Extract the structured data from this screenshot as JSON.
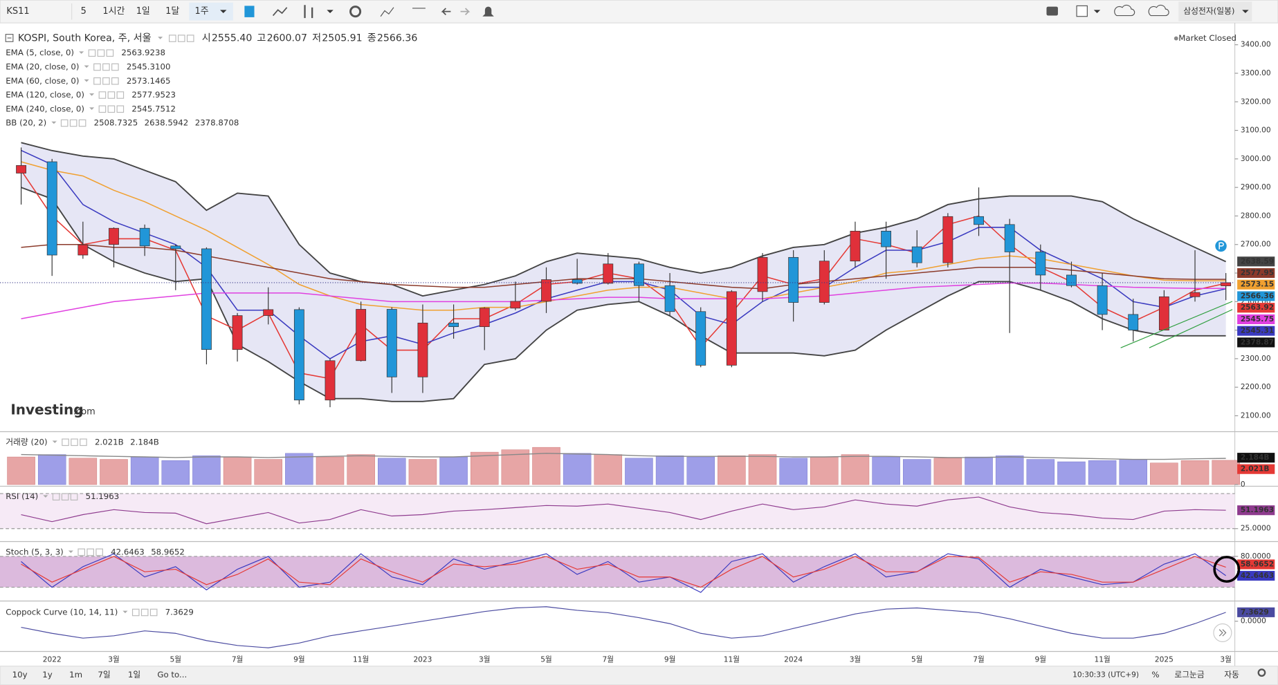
{
  "toolbar": {
    "symbol": "KS11",
    "intervals": [
      "5",
      "1시간",
      "1일",
      "1달",
      "1주"
    ],
    "active_interval": 4,
    "watchlist": "삼성전자(일봉)"
  },
  "status": "Market Closed",
  "watermark": [
    "Investing",
    ".com"
  ],
  "chart_data": [
    {
      "type": "candlestick",
      "title": "KOSPI, South Korea, 주, 서울",
      "ohlc_header": [
        {
          "label": "시",
          "value": "2555.40"
        },
        {
          "label": "고",
          "value": "2600.07"
        },
        {
          "label": "저",
          "value": "2505.91"
        },
        {
          "label": "종",
          "value": "2566.36"
        }
      ],
      "categories": [
        null,
        "2022",
        null,
        "3월",
        null,
        "5월",
        null,
        "7월",
        null,
        "9월",
        null,
        "11월",
        null,
        "2023",
        null,
        "3월",
        null,
        "5월",
        null,
        "7월",
        null,
        "9월",
        null,
        "11월",
        null,
        "2024",
        null,
        "3월",
        null,
        "5월",
        null,
        "7월",
        null,
        "9월",
        null,
        "11월",
        null,
        "2025",
        null,
        "3월"
      ],
      "open": [
        2950,
        2990,
        2663,
        2700,
        2757,
        2695,
        2685,
        2332,
        2451,
        2472,
        2155,
        2293,
        2473,
        2236,
        2425,
        2412,
        2477,
        2501,
        2577,
        2564,
        2632,
        2556,
        2465,
        2277,
        2535,
        2655,
        2497,
        2642,
        2747,
        2692,
        2636,
        2798,
        2770,
        2674,
        2593,
        2556,
        2455,
        2400,
        2517,
        2555
      ],
      "high": [
        3040,
        3000,
        2780,
        2760,
        2770,
        2700,
        2690,
        2460,
        2550,
        2480,
        2300,
        2500,
        2480,
        2490,
        2490,
        2480,
        2570,
        2620,
        2650,
        2670,
        2640,
        2600,
        2480,
        2540,
        2670,
        2680,
        2680,
        2780,
        2780,
        2750,
        2810,
        2900,
        2790,
        2700,
        2640,
        2600,
        2510,
        2540,
        2680,
        2600
      ],
      "low": [
        2840,
        2590,
        2650,
        2620,
        2660,
        2540,
        2280,
        2290,
        2420,
        2140,
        2130,
        2290,
        2180,
        2180,
        2370,
        2330,
        2470,
        2460,
        2560,
        2560,
        2500,
        2450,
        2270,
        2270,
        2500,
        2430,
        2490,
        2620,
        2580,
        2620,
        2620,
        2730,
        2390,
        2540,
        2550,
        2400,
        2360,
        2400,
        2500,
        2505
      ],
      "close": [
        2977,
        2663,
        2699,
        2757,
        2695,
        2685,
        2332,
        2451,
        2472,
        2155,
        2293,
        2473,
        2236,
        2425,
        2412,
        2477,
        2501,
        2577,
        2564,
        2632,
        2556,
        2465,
        2277,
        2535,
        2655,
        2497,
        2642,
        2747,
        2692,
        2636,
        2798,
        2770,
        2674,
        2593,
        2556,
        2455,
        2400,
        2517,
        2532,
        2566.36
      ],
      "up_color": "#e0303a",
      "down_color": "#2196d8",
      "last_price": 2566.36,
      "last_color": "#2196d8",
      "ylim": [
        2050,
        3465
      ],
      "grid": false,
      "yticks": [
        {
          "value": 2100,
          "label": "2100.00"
        },
        {
          "value": 2200,
          "label": "2200.00"
        },
        {
          "value": 2300,
          "label": "2300.00"
        },
        {
          "value": 2400,
          "label": "2400.00"
        },
        {
          "value": 2500,
          "label": "2500.00"
        },
        {
          "value": 2600,
          "label": "2600.00"
        },
        {
          "value": 2700,
          "label": "2700.00"
        },
        {
          "value": 2800,
          "label": "2800.00"
        },
        {
          "value": 2900,
          "label": "2900.00"
        },
        {
          "value": 3000,
          "label": "3000.00"
        },
        {
          "value": 3100,
          "label": "3100.00"
        },
        {
          "value": 3200,
          "label": "3200.00"
        },
        {
          "value": 3300,
          "label": "3300.00"
        },
        {
          "value": 3400,
          "label": "3400.00"
        }
      ],
      "series": [
        {
          "name": "EMA (5, close, 0)",
          "color": "#e53935",
          "legend_value": "2563.9238",
          "tag": "2563.92",
          "values": [
            2960,
            2800,
            2700,
            2720,
            2720,
            2680,
            2450,
            2400,
            2460,
            2250,
            2230,
            2420,
            2330,
            2330,
            2440,
            2440,
            2490,
            2560,
            2570,
            2600,
            2580,
            2500,
            2340,
            2460,
            2590,
            2560,
            2580,
            2720,
            2700,
            2670,
            2770,
            2800,
            2700,
            2620,
            2570,
            2480,
            2430,
            2480,
            2540,
            2564
          ]
        },
        {
          "name": "EMA (20, close, 0)",
          "color": "#3a3ac0",
          "legend_value": "2545.3100",
          "tag": "2545.31",
          "values": [
            3030,
            2980,
            2840,
            2780,
            2740,
            2700,
            2620,
            2470,
            2470,
            2380,
            2300,
            2360,
            2380,
            2350,
            2390,
            2420,
            2460,
            2510,
            2540,
            2570,
            2570,
            2540,
            2450,
            2420,
            2500,
            2550,
            2550,
            2620,
            2680,
            2680,
            2710,
            2760,
            2760,
            2680,
            2630,
            2580,
            2500,
            2480,
            2520,
            2545
          ]
        },
        {
          "name": "EMA (60, close, 0)",
          "color": "#f0a030",
          "legend_value": "2573.1465",
          "tag": "2573.15",
          "values": [
            2990,
            2960,
            2940,
            2890,
            2850,
            2800,
            2750,
            2690,
            2630,
            2560,
            2520,
            2490,
            2480,
            2470,
            2470,
            2480,
            2480,
            2500,
            2520,
            2540,
            2550,
            2550,
            2530,
            2510,
            2510,
            2530,
            2550,
            2570,
            2600,
            2610,
            2630,
            2650,
            2660,
            2650,
            2630,
            2610,
            2590,
            2575,
            2573,
            2573
          ]
        },
        {
          "name": "EMA (120, close, 0)",
          "color": "#8b3a2a",
          "legend_value": "2577.9523",
          "tag": "2577.95",
          "values": [
            2690,
            2700,
            2700,
            2690,
            2690,
            2680,
            2660,
            2640,
            2620,
            2600,
            2580,
            2570,
            2560,
            2555,
            2550,
            2550,
            2560,
            2570,
            2580,
            2580,
            2580,
            2570,
            2560,
            2550,
            2545,
            2560,
            2570,
            2580,
            2590,
            2600,
            2610,
            2620,
            2620,
            2620,
            2610,
            2600,
            2590,
            2580,
            2578,
            2578
          ]
        },
        {
          "name": "EMA (240, close, 0)",
          "color": "#e040e0",
          "legend_value": "2545.7512",
          "tag": "2545.75",
          "values": [
            2440,
            2460,
            2480,
            2500,
            2510,
            2520,
            2530,
            2530,
            2530,
            2530,
            2520,
            2510,
            2500,
            2500,
            2500,
            2500,
            2500,
            2505,
            2510,
            2515,
            2515,
            2510,
            2510,
            2510,
            2510,
            2515,
            2520,
            2530,
            2540,
            2550,
            2555,
            2560,
            2565,
            2565,
            2560,
            2555,
            2550,
            2548,
            2546,
            2546
          ]
        }
      ],
      "bands": {
        "name": "BB (20, 2)",
        "color": "#444444",
        "fill": "#e6e6f5",
        "legend_values": [
          "2508.7325",
          "2638.5942",
          "2378.8708"
        ],
        "legend_colors": [
          "#e53935",
          "#222222",
          "#222222"
        ],
        "upper_tag": "2638.59",
        "lower_tag": "2378.87",
        "upper": [
          3057,
          3029,
          3010,
          3000,
          2960,
          2920,
          2820,
          2880,
          2870,
          2700,
          2600,
          2570,
          2560,
          2520,
          2540,
          2560,
          2590,
          2640,
          2670,
          2660,
          2650,
          2620,
          2600,
          2620,
          2660,
          2690,
          2700,
          2740,
          2760,
          2790,
          2840,
          2860,
          2870,
          2870,
          2870,
          2850,
          2790,
          2740,
          2690,
          2640
        ],
        "lower": [
          2900,
          2860,
          2700,
          2640,
          2600,
          2570,
          2580,
          2350,
          2290,
          2220,
          2160,
          2160,
          2150,
          2150,
          2160,
          2280,
          2300,
          2400,
          2470,
          2490,
          2500,
          2450,
          2380,
          2320,
          2320,
          2320,
          2310,
          2330,
          2400,
          2460,
          2520,
          2570,
          2570,
          2540,
          2500,
          2440,
          2400,
          2380,
          2380,
          2380
        ]
      }
    },
    {
      "type": "bar",
      "title": "거래량 (20)",
      "legend_values": [
        "2.021B",
        "2.184B"
      ],
      "legend_colors": [
        "#e53935",
        "#222222"
      ],
      "tags": [
        "2.184B",
        "2.021B"
      ],
      "tag_colors": [
        "#111111",
        "#e53935"
      ],
      "up_color": "#e7a5a5",
      "down_color": "#9e9ee8",
      "ylim": [
        0,
        4.2
      ],
      "yticks": [
        0
      ],
      "values": [
        2.3,
        2.5,
        2.2,
        2.1,
        2.3,
        2.0,
        2.4,
        2.3,
        2.1,
        2.6,
        2.3,
        2.5,
        2.2,
        2.1,
        2.3,
        2.7,
        2.9,
        3.1,
        2.6,
        2.5,
        2.2,
        2.4,
        2.3,
        2.4,
        2.5,
        2.2,
        2.3,
        2.5,
        2.3,
        2.1,
        2.2,
        2.3,
        2.4,
        2.1,
        1.9,
        2.0,
        2.1,
        1.8,
        2.0,
        2.021
      ],
      "ma": {
        "color": "#888888",
        "values": [
          2.5,
          2.45,
          2.4,
          2.35,
          2.3,
          2.25,
          2.3,
          2.3,
          2.25,
          2.3,
          2.35,
          2.4,
          2.35,
          2.3,
          2.3,
          2.4,
          2.5,
          2.6,
          2.55,
          2.5,
          2.4,
          2.35,
          2.35,
          2.35,
          2.35,
          2.3,
          2.3,
          2.35,
          2.35,
          2.3,
          2.25,
          2.25,
          2.3,
          2.25,
          2.2,
          2.15,
          2.1,
          2.1,
          2.15,
          2.184
        ]
      }
    },
    {
      "type": "line",
      "title": "RSI (14)",
      "ylim": [
        10,
        82
      ],
      "yticks": [
        {
          "value": 25,
          "label": "25.0000"
        }
      ],
      "bands": [
        25,
        75
      ],
      "band_fill": "#f6eaf6",
      "series": [
        {
          "color": "#8e3b8e",
          "values": [
            45,
            35,
            45,
            52,
            48,
            47,
            32,
            40,
            48,
            33,
            38,
            52,
            43,
            45,
            50,
            52,
            55,
            58,
            57,
            60,
            54,
            48,
            38,
            50,
            60,
            52,
            56,
            66,
            60,
            57,
            66,
            70,
            56,
            48,
            45,
            40,
            38,
            50,
            52,
            51.1963
          ]
        }
      ]
    },
    {
      "type": "line",
      "title": "Stoch (5, 3, 3)",
      "ylim": [
        -2,
        104
      ],
      "yticks": [
        {
          "value": 80,
          "label": "80.0000"
        }
      ],
      "bands": [
        20,
        80
      ],
      "band_fill": "#dcbadd",
      "series": [
        {
          "color": "#3a3ac0",
          "values": [
            70,
            20,
            60,
            85,
            40,
            60,
            15,
            55,
            80,
            20,
            30,
            85,
            40,
            25,
            75,
            55,
            70,
            85,
            45,
            70,
            30,
            40,
            10,
            70,
            85,
            30,
            60,
            85,
            40,
            50,
            85,
            75,
            20,
            55,
            40,
            25,
            30,
            65,
            85,
            42.6463
          ]
        },
        {
          "color": "#e53935",
          "values": [
            65,
            30,
            55,
            80,
            50,
            55,
            25,
            45,
            75,
            30,
            25,
            75,
            50,
            30,
            65,
            60,
            65,
            80,
            55,
            65,
            40,
            40,
            20,
            55,
            80,
            40,
            55,
            80,
            50,
            50,
            80,
            78,
            30,
            50,
            45,
            30,
            30,
            55,
            80,
            58.9652
          ]
        }
      ]
    },
    {
      "type": "line",
      "title": "Coppock Curve (10, 14, 11)",
      "ylim": [
        -25,
        14
      ],
      "yticks": [
        {
          "value": 0,
          "label": "0.0000"
        }
      ],
      "series": [
        {
          "color": "#4a4aa0",
          "values": [
            -5,
            -10,
            -14,
            -12,
            -8,
            -10,
            -16,
            -20,
            -22,
            -18,
            -12,
            -8,
            -4,
            0,
            4,
            8,
            11,
            12,
            9,
            7,
            3,
            -2,
            -10,
            -14,
            -12,
            -6,
            0,
            6,
            10,
            11,
            9,
            7,
            2,
            -4,
            -10,
            -14,
            -14,
            -10,
            -2,
            7.3629
          ]
        }
      ]
    }
  ],
  "footer": {
    "ranges": [
      "10y",
      "1y",
      "1m",
      "7일",
      "1일"
    ],
    "goto": "Go to...",
    "time": "10:30:33 (UTC+9)",
    "options": [
      "%",
      "로그눈금",
      "자동"
    ]
  }
}
